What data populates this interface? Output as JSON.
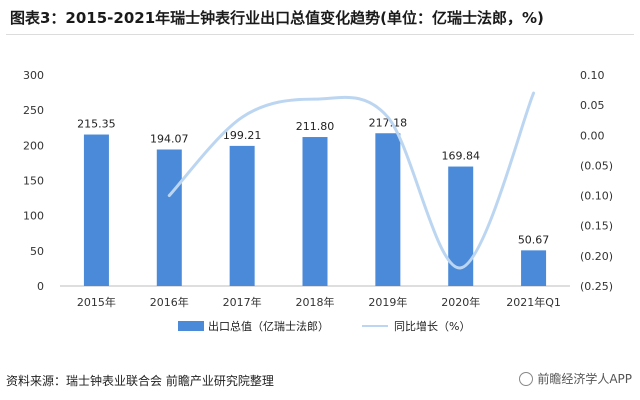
{
  "title": "图表3：2015-2021年瑞士钟表行业出口总值变化趋势(单位：亿瑞士法郎，%)",
  "source_text": "资料来源：瑞士钟表业联合会 前瞻产业研究院整理",
  "watermark_text": "前瞻经济学人APP",
  "colors": {
    "bar": "#4a8ad8",
    "line": "#bcd6f1",
    "axis_text": "#333333",
    "grid": "#e5e5e5"
  },
  "chart_data": {
    "type": "bar",
    "categories": [
      "2015年",
      "2016年",
      "2017年",
      "2018年",
      "2019年",
      "2020年",
      "2021年Q1"
    ],
    "series": [
      {
        "name": "出口总值（亿瑞士法郎）",
        "type": "bar",
        "axis": "left",
        "values": [
          215.35,
          194.07,
          199.21,
          211.8,
          217.18,
          169.84,
          50.67
        ]
      },
      {
        "name": "同比增长（%）",
        "type": "line",
        "axis": "right",
        "values": [
          null,
          -0.1,
          0.03,
          0.06,
          0.03,
          -0.22,
          0.07
        ]
      }
    ],
    "y_left": {
      "ylim": [
        0,
        300
      ],
      "ticks": [
        "0",
        "50",
        "100",
        "150",
        "200",
        "250",
        "300"
      ]
    },
    "y_right": {
      "ylim": [
        -0.25,
        0.1
      ],
      "ticks": [
        "0.10",
        "0.05",
        "0.00",
        "(0.05)",
        "(0.10)",
        "(0.15)",
        "(0.20)",
        "(0.25)"
      ]
    },
    "data_labels": [
      "215.35",
      "194.07",
      "199.21",
      "211.80",
      "217.18",
      "169.84",
      "50.67"
    ],
    "grid": false,
    "legend": "bottom"
  }
}
